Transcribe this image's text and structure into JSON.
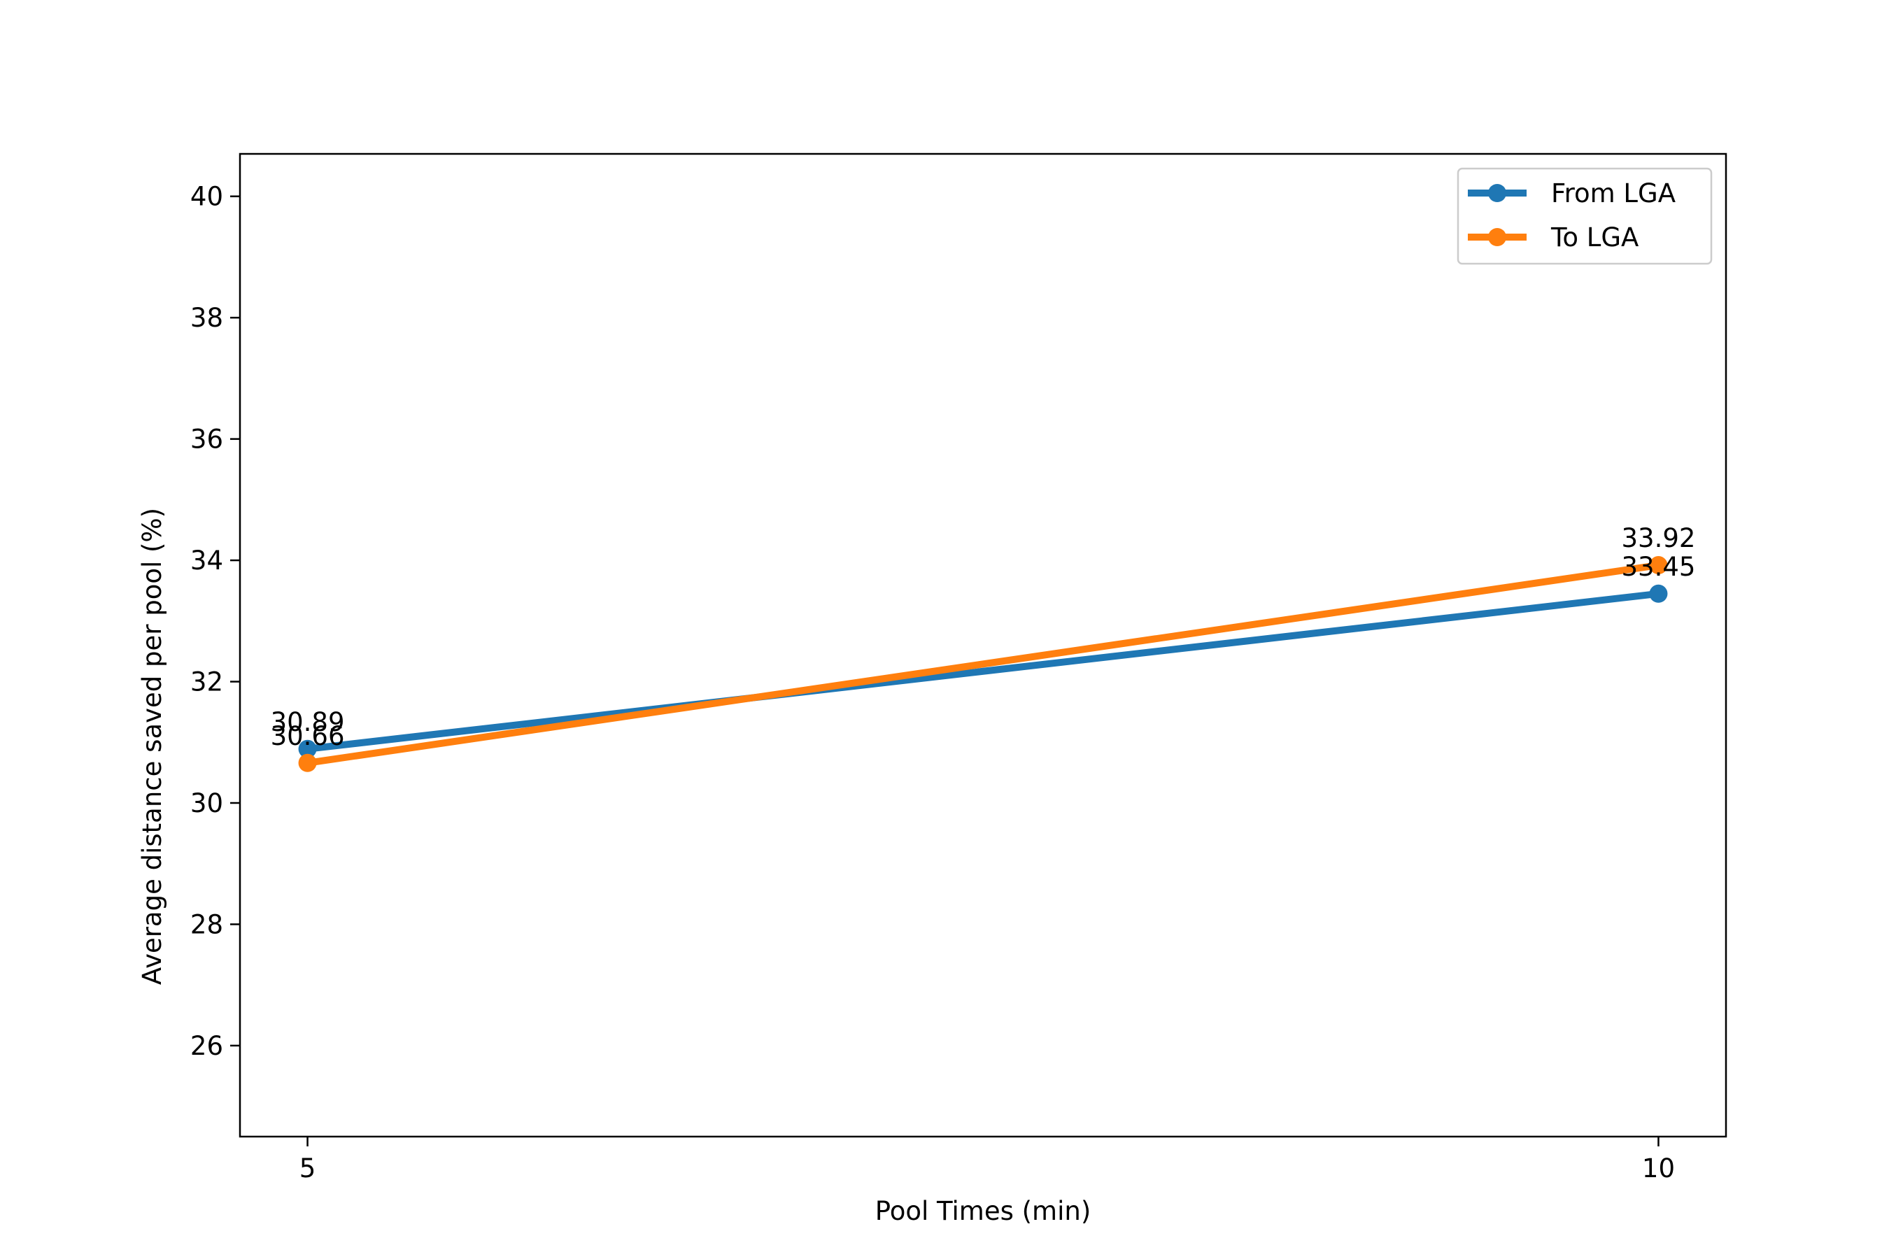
{
  "chart_data": {
    "type": "line",
    "xlabel": "Pool Times (min)",
    "ylabel": "Average distance saved per pool (%)",
    "x": [
      5,
      10
    ],
    "xticks": [
      5,
      10
    ],
    "xticklabels": [
      "5",
      "10"
    ],
    "xlim": [
      4.75,
      10.25
    ],
    "ylim": [
      24.5,
      40.7
    ],
    "yticks": [
      26,
      28,
      30,
      32,
      34,
      36,
      38,
      40
    ],
    "yticklabels": [
      "26",
      "28",
      "30",
      "32",
      "34",
      "36",
      "38",
      "40"
    ],
    "grid": false,
    "legend_position": "top-right",
    "series": [
      {
        "name": "From LGA",
        "color": "#1f77b4",
        "values": [
          30.89,
          33.45
        ],
        "labels": [
          "30.89",
          "33.45"
        ]
      },
      {
        "name": "To LGA",
        "color": "#ff7f0e",
        "values": [
          30.66,
          33.92
        ],
        "labels": [
          "30.66",
          "33.92"
        ]
      }
    ]
  }
}
